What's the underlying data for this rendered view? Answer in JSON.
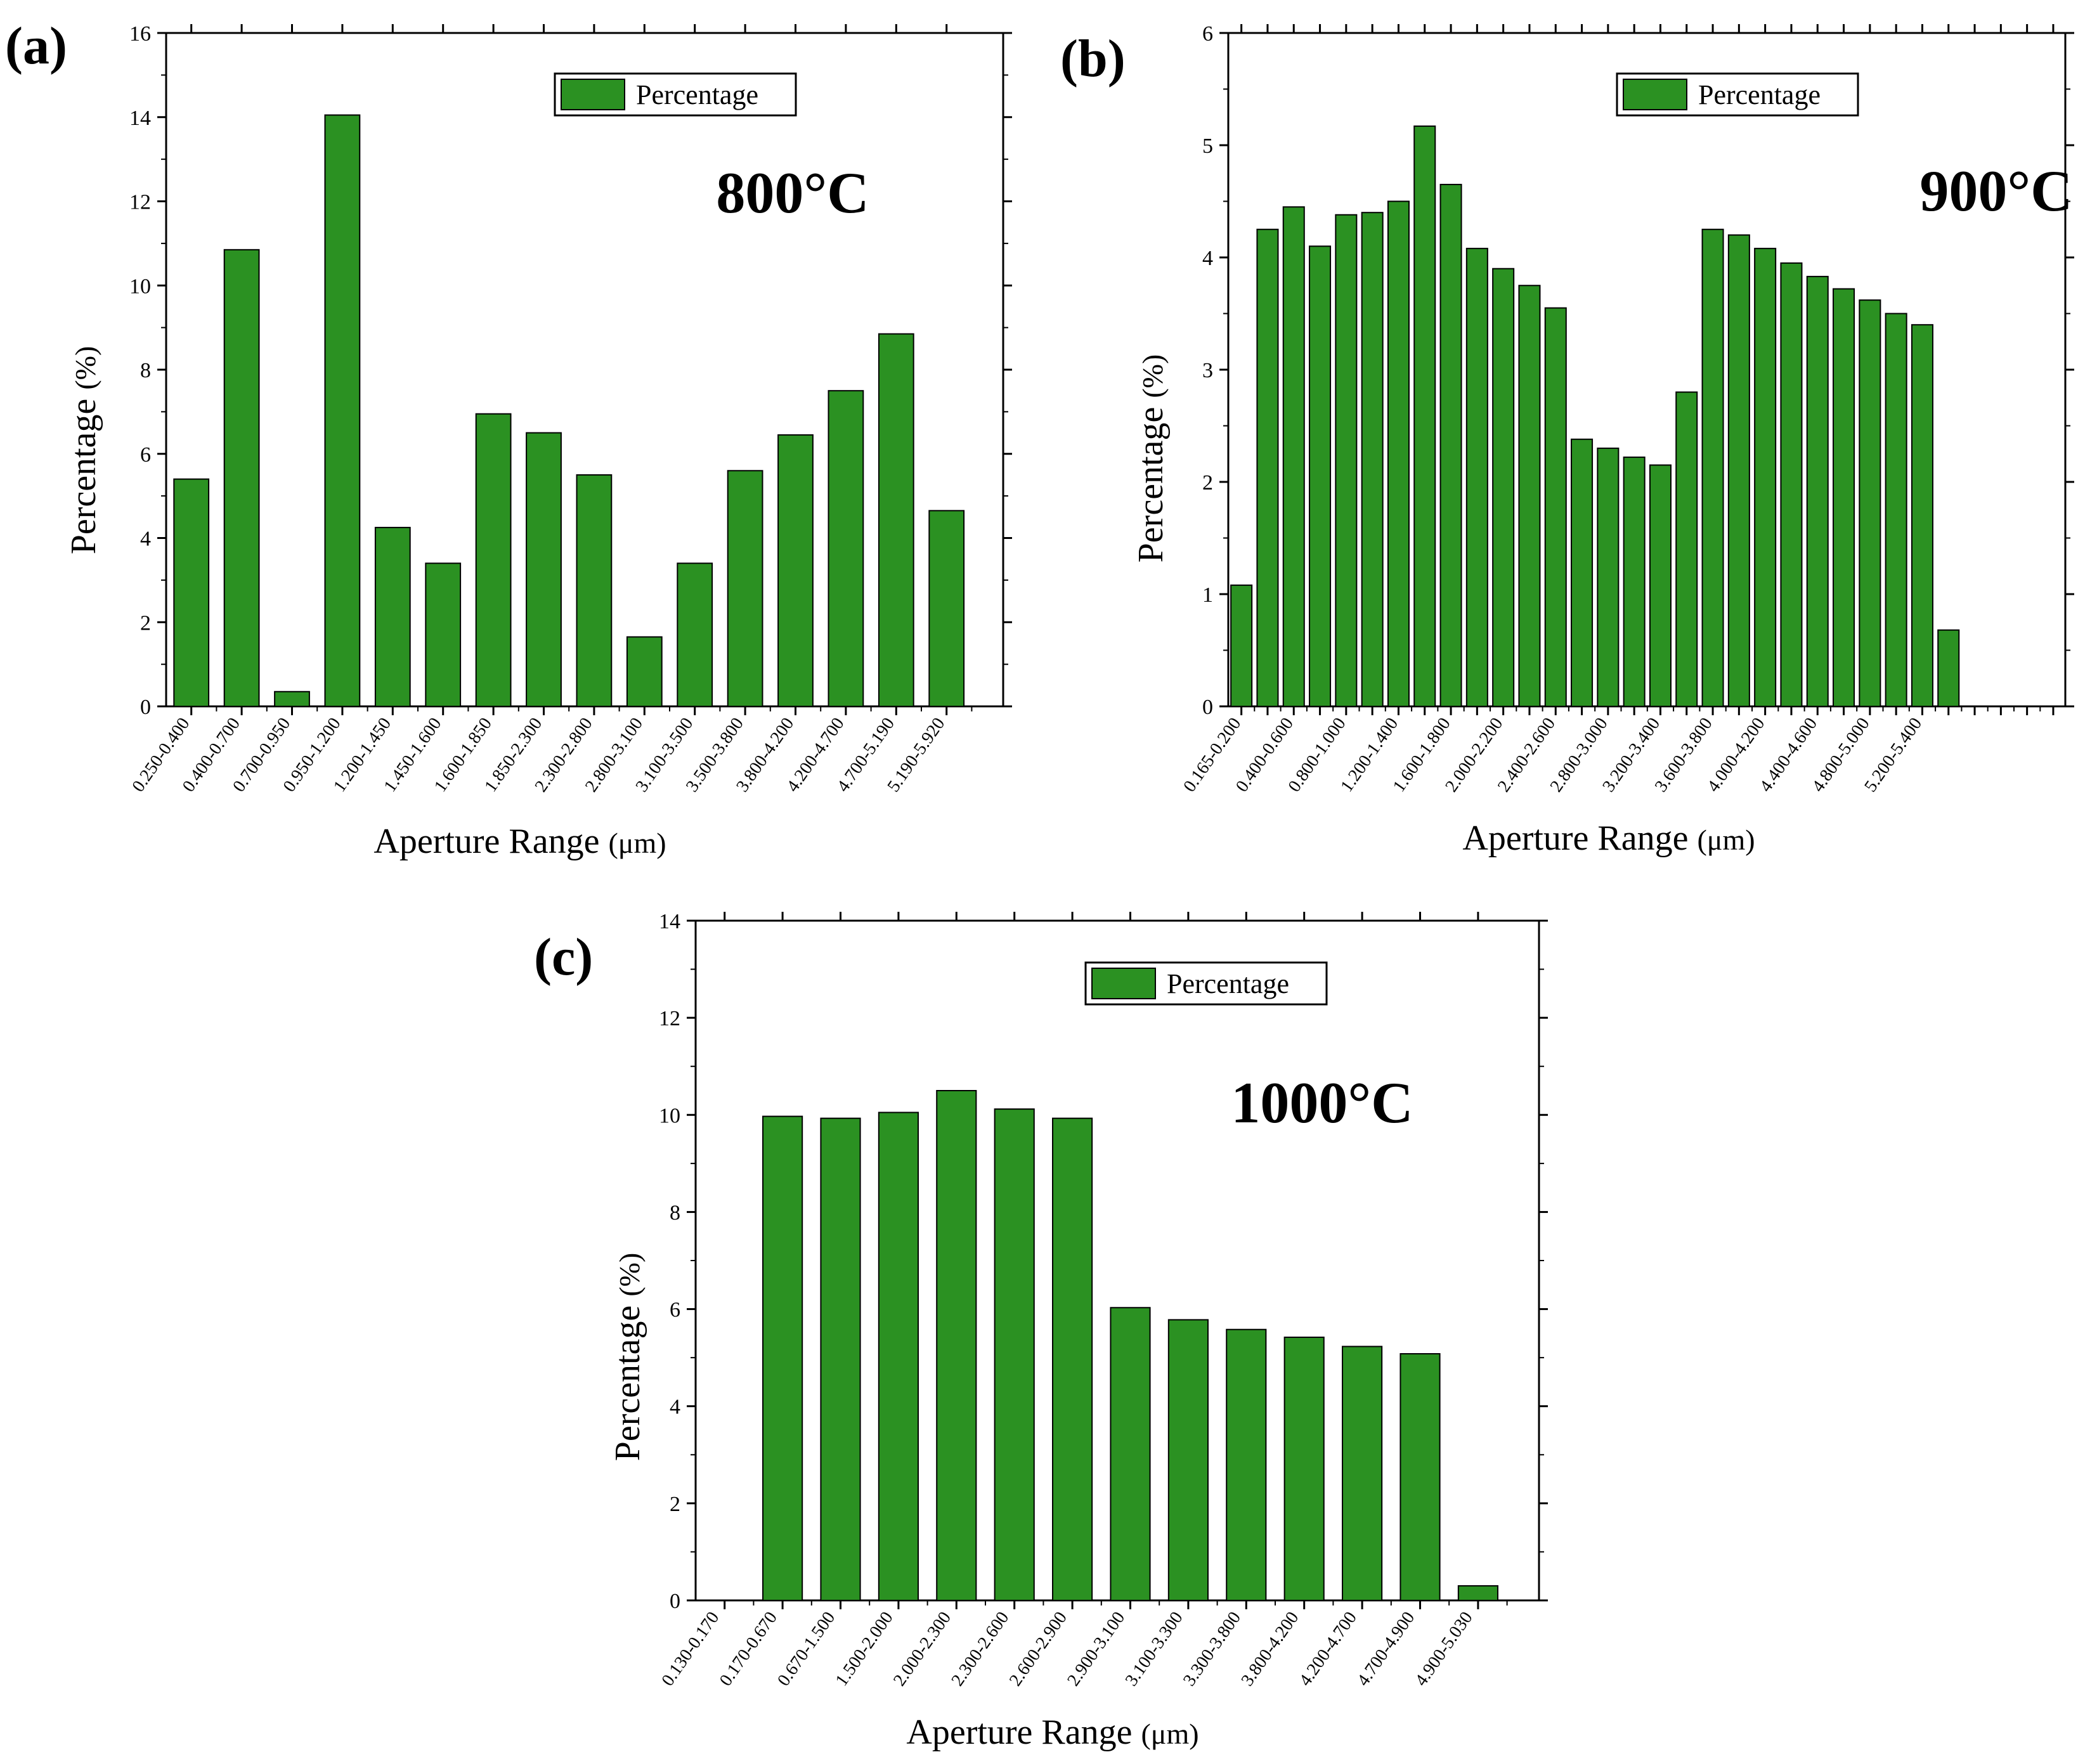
{
  "chart_data": [
    {
      "type": "bar",
      "panel_label": "(a)",
      "annotation": "800°C",
      "legend": "Percentage",
      "series_name": "Percentage",
      "xlabel": "Aperture Range",
      "xlabel_unit": "(μm)",
      "ylabel": "Percentage",
      "ylabel_unit": "(%)",
      "ylim": [
        0,
        16
      ],
      "yticks": [
        "0",
        "2",
        "4",
        "6",
        "8",
        "10",
        "12",
        "14",
        "16"
      ],
      "color": "#2b9122",
      "categories": [
        "0.250-0.400",
        "0.400-0.700",
        "0.700-0.950",
        "0.950-1.200",
        "1.200-1.450",
        "1.450-1.600",
        "1.600-1.850",
        "1.850-2.300",
        "2.300-2.800",
        "2.800-3.100",
        "3.100-3.500",
        "3.500-3.800",
        "3.800-4.200",
        "4.200-4.700",
        "4.700-5.190",
        "5.190-5.920"
      ],
      "values": [
        5.4,
        10.85,
        0.35,
        14.05,
        4.25,
        3.4,
        6.95,
        6.5,
        5.5,
        1.65,
        3.4,
        5.6,
        6.45,
        7.5,
        8.85,
        4.65
      ]
    },
    {
      "type": "bar",
      "panel_label": "(b)",
      "annotation": "900°C",
      "legend": "Percentage",
      "series_name": "Percentage",
      "xlabel": "Aperture Range",
      "xlabel_unit": "(μm)",
      "ylabel": "Percentage",
      "ylabel_unit": "(%)",
      "ylim": [
        0,
        6
      ],
      "yticks": [
        "0",
        "1",
        "2",
        "3",
        "4",
        "5",
        "6"
      ],
      "color": "#2b9122",
      "categories": [
        "0.165-0.200",
        "",
        "0.400-0.600",
        "",
        "0.800-1.000",
        "",
        "1.200-1.400",
        "",
        "1.600-1.800",
        "",
        "2.000-2.200",
        "",
        "2.400-2.600",
        "",
        "2.800-3.000",
        "",
        "3.200-3.400",
        "",
        "3.600-3.800",
        "",
        "4.000-4.200",
        "",
        "4.400-4.600",
        "",
        "4.800-5.000",
        "",
        "5.200-5.400",
        "",
        "",
        "",
        "",
        ""
      ],
      "values": [
        1.08,
        4.25,
        4.45,
        4.1,
        4.38,
        4.4,
        4.5,
        5.17,
        4.65,
        4.08,
        3.9,
        3.75,
        3.55,
        2.38,
        2.3,
        2.22,
        2.15,
        2.8,
        4.25,
        4.2,
        4.08,
        3.95,
        3.83,
        3.72,
        3.62,
        3.5,
        3.4,
        0.68,
        null,
        null,
        null,
        null
      ]
    },
    {
      "type": "bar",
      "panel_label": "(c)",
      "annotation": "1000°C",
      "legend": "Percentage",
      "series_name": "Percentage",
      "xlabel": "Aperture Range",
      "xlabel_unit": "(μm)",
      "ylabel": "Percentage",
      "ylabel_unit": "(%)",
      "ylim": [
        0,
        14
      ],
      "yticks": [
        "0",
        "2",
        "4",
        "6",
        "8",
        "10",
        "12",
        "14"
      ],
      "color": "#2b9122",
      "categories": [
        "0.130-0.170",
        "0.170-0.670",
        "0.670-1.500",
        "1.500-2.000",
        "2.000-2.300",
        "2.300-2.600",
        "2.600-2.900",
        "2.900-3.100",
        "3.100-3.300",
        "3.300-3.800",
        "3.800-4.200",
        "4.200-4.700",
        "4.700-4.900",
        "4.900-5.030"
      ],
      "values": [
        0,
        9.97,
        9.93,
        10.05,
        10.5,
        10.12,
        9.93,
        6.03,
        5.78,
        5.58,
        5.42,
        5.23,
        5.08,
        0.3
      ]
    }
  ]
}
